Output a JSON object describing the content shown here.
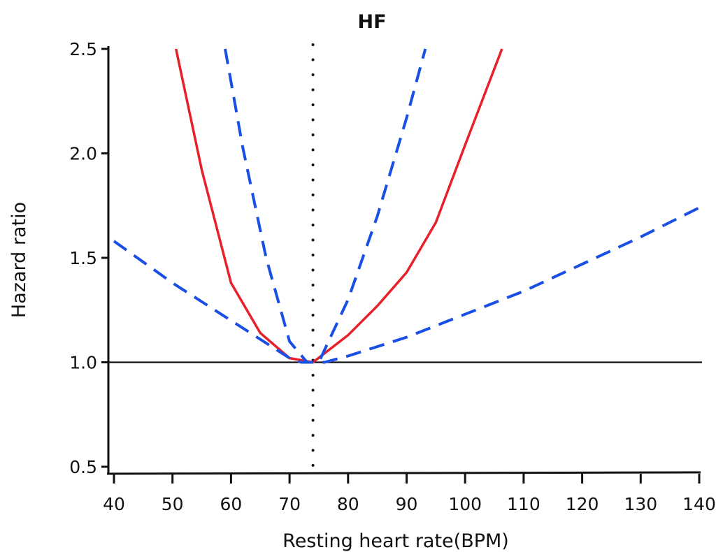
{
  "chart_data": {
    "type": "line",
    "title": "HF",
    "xlabel": "Resting heart rate(BPM)",
    "ylabel": "Hazard ratio",
    "xlim": [
      40,
      140
    ],
    "ylim": [
      0.5,
      2.5
    ],
    "xticks": [
      "40",
      "50",
      "60",
      "70",
      "80",
      "90",
      "100",
      "110",
      "120",
      "130",
      "140"
    ],
    "yticks": [
      "0.5",
      "1.0",
      "1.5",
      "2.0",
      "2.5"
    ],
    "grid": false,
    "reference_lines": {
      "horizontal_y": 1.0,
      "vertical_x": 74
    },
    "colors": {
      "estimate": "#e8202a",
      "ci": "#1a4fe6",
      "axis": "#111111"
    },
    "series": [
      {
        "style": "solid",
        "color": "#e8202a",
        "x": [
          50.6,
          55,
          60,
          65,
          70,
          74,
          80,
          85,
          90,
          95,
          100,
          106.3
        ],
        "y": [
          2.5,
          1.92,
          1.38,
          1.14,
          1.02,
          1.0,
          1.13,
          1.27,
          1.43,
          1.67,
          2.04,
          2.5
        ]
      },
      {
        "style": "dashed",
        "color": "#1a4fe6",
        "x": [
          59,
          62,
          66,
          70,
          73,
          74,
          75,
          80,
          85,
          90,
          93.2
        ],
        "y": [
          2.5,
          2.03,
          1.5,
          1.1,
          1.0,
          1.0,
          1.0,
          1.3,
          1.7,
          2.17,
          2.5
        ]
      },
      {
        "style": "dashed",
        "color": "#1a4fe6",
        "x": [
          40,
          50,
          60,
          70,
          72,
          74,
          76,
          80,
          90,
          100,
          110,
          120,
          130,
          140
        ],
        "y": [
          1.58,
          1.38,
          1.2,
          1.02,
          1.0,
          1.0,
          1.0,
          1.03,
          1.12,
          1.23,
          1.34,
          1.47,
          1.6,
          1.74
        ]
      }
    ]
  }
}
